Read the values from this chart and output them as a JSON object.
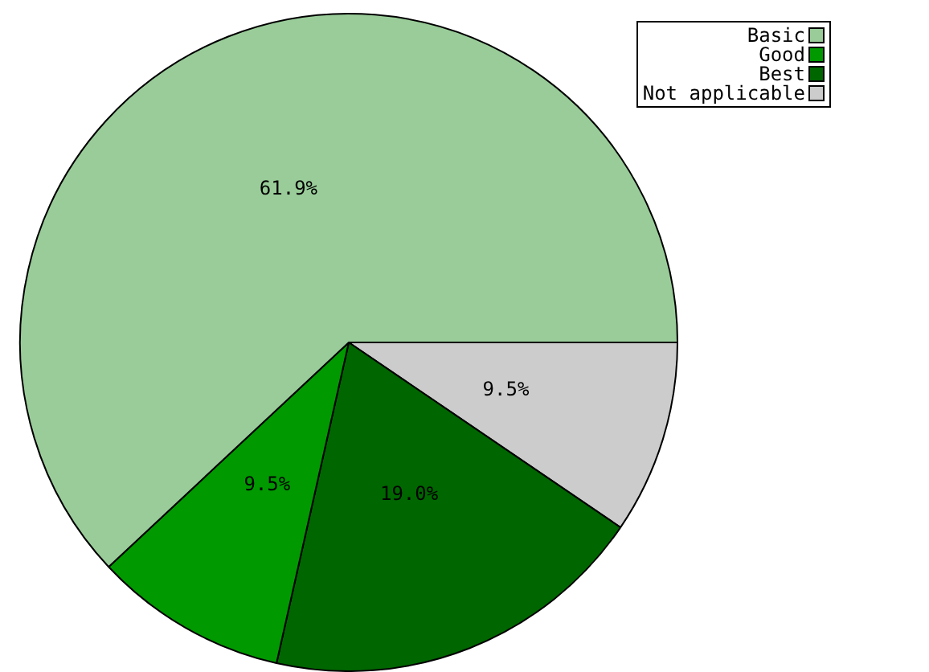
{
  "chart_data": {
    "type": "pie",
    "categories": [
      "Basic",
      "Good",
      "Best",
      "Not applicable"
    ],
    "values": [
      61.9,
      9.5,
      19.0,
      9.5
    ],
    "colors": [
      "#99cc99",
      "#009900",
      "#006600",
      "#cccccc"
    ],
    "value_labels": [
      "61.9%",
      "9.5%",
      "19.0%",
      "9.5%"
    ],
    "legend": "top right"
  }
}
